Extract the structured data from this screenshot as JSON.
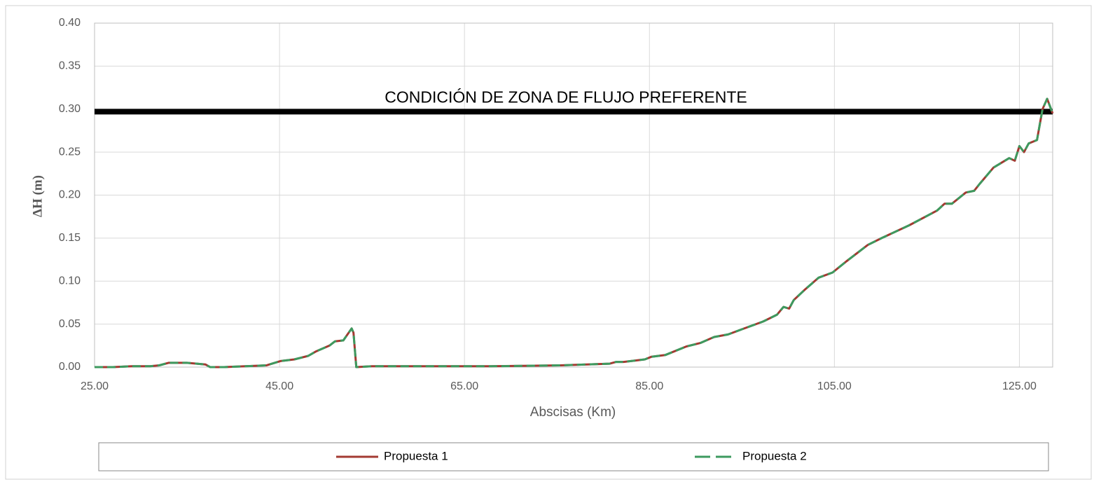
{
  "chart_data": {
    "type": "line",
    "y_label": "ΔH (m)",
    "x_label": "Abscisas (Km)",
    "annotation": "CONDICIÓN DE ZONA DE FLUJO PREFERENTE",
    "threshold": 0.297,
    "x": [
      25,
      27,
      29,
      31,
      32,
      33,
      35,
      37,
      37.5,
      39,
      41.3,
      43.6,
      45.1,
      46.6,
      48.1,
      48.9,
      50.4,
      51,
      51.9,
      52.8,
      53,
      53.3,
      55,
      67.8,
      75.4,
      80.7,
      81.4,
      82.2,
      84.5,
      85.2,
      86.7,
      89,
      90.5,
      92,
      93.5,
      95,
      97.3,
      98.8,
      99.5,
      100.1,
      100.6,
      101.8,
      103.3,
      104.8,
      106.3,
      108.6,
      110.1,
      113.1,
      116.1,
      116.9,
      117.7,
      119.2,
      120.1,
      120.7,
      122.2,
      123.9,
      124.5,
      125,
      125.5,
      126,
      126.9,
      127.5,
      128,
      128.6
    ],
    "series": [
      {
        "name": "Propuesta 1",
        "color": "#a33a32",
        "dashed": false,
        "values": [
          0,
          0,
          0.001,
          0.001,
          0.002,
          0.005,
          0.005,
          0.003,
          0,
          0,
          0.001,
          0.002,
          0.007,
          0.009,
          0.013,
          0.018,
          0.025,
          0.03,
          0.031,
          0.045,
          0.04,
          0,
          0.001,
          0.001,
          0.002,
          0.004,
          0.006,
          0.006,
          0.009,
          0.012,
          0.014,
          0.024,
          0.028,
          0.035,
          0.038,
          0.044,
          0.053,
          0.061,
          0.07,
          0.068,
          0.078,
          0.09,
          0.104,
          0.11,
          0.123,
          0.142,
          0.15,
          0.165,
          0.182,
          0.19,
          0.19,
          0.203,
          0.205,
          0.213,
          0.232,
          0.243,
          0.24,
          0.257,
          0.25,
          0.26,
          0.264,
          0.3,
          0.312,
          0.295
        ]
      },
      {
        "name": "Propuesta 2",
        "color": "#3d9a5f",
        "dashed": true,
        "values": [
          0,
          0,
          0.001,
          0.001,
          0.002,
          0.005,
          0.005,
          0.003,
          0,
          0,
          0.001,
          0.002,
          0.007,
          0.009,
          0.013,
          0.018,
          0.025,
          0.03,
          0.031,
          0.045,
          0.04,
          0,
          0.001,
          0.001,
          0.002,
          0.004,
          0.006,
          0.006,
          0.009,
          0.012,
          0.014,
          0.024,
          0.028,
          0.035,
          0.038,
          0.044,
          0.053,
          0.061,
          0.07,
          0.068,
          0.078,
          0.09,
          0.104,
          0.11,
          0.123,
          0.142,
          0.15,
          0.165,
          0.182,
          0.19,
          0.19,
          0.203,
          0.205,
          0.213,
          0.232,
          0.243,
          0.24,
          0.257,
          0.25,
          0.26,
          0.264,
          0.3,
          0.312,
          0.295
        ]
      }
    ],
    "xlim": [
      25,
      128.6
    ],
    "ylim": [
      0,
      0.4
    ],
    "xticks": [
      {
        "value": 25,
        "label": "25.00"
      },
      {
        "value": 45,
        "label": "45.00"
      },
      {
        "value": 65,
        "label": "65.00"
      },
      {
        "value": 85,
        "label": "85.00"
      },
      {
        "value": 105,
        "label": "105.00"
      },
      {
        "value": 125,
        "label": "125.00"
      }
    ],
    "yticks": [
      {
        "value": 0,
        "label": "0.00"
      },
      {
        "value": 0.05,
        "label": "0.05"
      },
      {
        "value": 0.1,
        "label": "0.10"
      },
      {
        "value": 0.15,
        "label": "0.15"
      },
      {
        "value": 0.2,
        "label": "0.20"
      },
      {
        "value": 0.25,
        "label": "0.25"
      },
      {
        "value": 0.3,
        "label": "0.30"
      },
      {
        "value": 0.35,
        "label": "0.35"
      },
      {
        "value": 0.4,
        "label": "0.40"
      }
    ],
    "grid": true
  }
}
